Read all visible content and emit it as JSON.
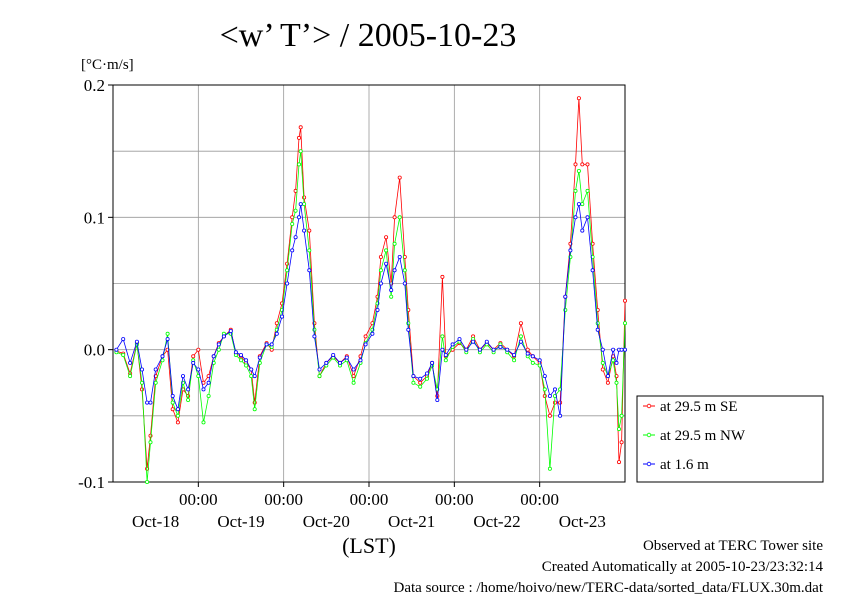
{
  "chart_data": {
    "type": "line",
    "title": "<w’ T’> / 2005-10-23",
    "yunit": "[°C·m/s]",
    "xlabel": "(LST)",
    "ylim": [
      -0.1,
      0.2
    ],
    "yticks": [
      {
        "value": 0.2,
        "label": "0.2"
      },
      {
        "value": 0.1,
        "label": "0.1"
      },
      {
        "value": 0.0,
        "label": "0.0"
      },
      {
        "value": -0.1,
        "label": "-0.1"
      }
    ],
    "xlim": [
      -1.0,
      5.0
    ],
    "xticks_time": [
      {
        "day": 0,
        "label": "00:00"
      },
      {
        "day": 1,
        "label": "00:00"
      },
      {
        "day": 2,
        "label": "00:00"
      },
      {
        "day": 3,
        "label": "00:00"
      },
      {
        "day": 4,
        "label": "00:00"
      }
    ],
    "xticks_date": [
      {
        "day": -0.5,
        "label": "Oct-18"
      },
      {
        "day": 0.5,
        "label": "Oct-19"
      },
      {
        "day": 1.5,
        "label": "Oct-20"
      },
      {
        "day": 2.5,
        "label": "Oct-21"
      },
      {
        "day": 3.5,
        "label": "Oct-22"
      },
      {
        "day": 4.5,
        "label": "Oct-23"
      }
    ],
    "grid": true,
    "legend_position": "right, outside plot",
    "series": [
      {
        "name": "at 29.5 m SE",
        "color": "#ff0000",
        "points": [
          [
            -0.96,
            -0.001
          ],
          [
            -0.88,
            -0.003
          ],
          [
            -0.8,
            -0.018
          ],
          [
            -0.72,
            0.005
          ],
          [
            -0.66,
            -0.03
          ],
          [
            -0.6,
            -0.09
          ],
          [
            -0.56,
            -0.065
          ],
          [
            -0.5,
            -0.02
          ],
          [
            -0.42,
            -0.005
          ],
          [
            -0.36,
            0.0
          ],
          [
            -0.3,
            -0.045
          ],
          [
            -0.24,
            -0.055
          ],
          [
            -0.18,
            -0.03
          ],
          [
            -0.12,
            -0.035
          ],
          [
            -0.06,
            -0.005
          ],
          [
            0.0,
            0.0
          ],
          [
            0.06,
            -0.025
          ],
          [
            0.12,
            -0.02
          ],
          [
            0.18,
            -0.005
          ],
          [
            0.24,
            0.005
          ],
          [
            0.3,
            0.01
          ],
          [
            0.38,
            0.015
          ],
          [
            0.44,
            -0.003
          ],
          [
            0.5,
            -0.005
          ],
          [
            0.56,
            -0.01
          ],
          [
            0.62,
            -0.015
          ],
          [
            0.66,
            -0.04
          ],
          [
            0.72,
            -0.005
          ],
          [
            0.8,
            0.005
          ],
          [
            0.86,
            0.0
          ],
          [
            0.92,
            0.02
          ],
          [
            0.98,
            0.035
          ],
          [
            1.04,
            0.065
          ],
          [
            1.1,
            0.1
          ],
          [
            1.14,
            0.12
          ],
          [
            1.18,
            0.16
          ],
          [
            1.2,
            0.168
          ],
          [
            1.24,
            0.115
          ],
          [
            1.3,
            0.09
          ],
          [
            1.36,
            0.02
          ],
          [
            1.42,
            -0.02
          ],
          [
            1.5,
            -0.01
          ],
          [
            1.58,
            -0.005
          ],
          [
            1.66,
            -0.01
          ],
          [
            1.74,
            -0.005
          ],
          [
            1.82,
            -0.02
          ],
          [
            1.9,
            -0.005
          ],
          [
            1.96,
            0.01
          ],
          [
            2.04,
            0.02
          ],
          [
            2.1,
            0.04
          ],
          [
            2.14,
            0.07
          ],
          [
            2.2,
            0.085
          ],
          [
            2.26,
            0.05
          ],
          [
            2.3,
            0.1
          ],
          [
            2.36,
            0.13
          ],
          [
            2.42,
            0.07
          ],
          [
            2.46,
            0.03
          ],
          [
            2.52,
            -0.02
          ],
          [
            2.6,
            -0.025
          ],
          [
            2.68,
            -0.02
          ],
          [
            2.74,
            -0.01
          ],
          [
            2.8,
            -0.035
          ],
          [
            2.86,
            0.055
          ],
          [
            2.9,
            -0.005
          ],
          [
            2.98,
            0.0
          ],
          [
            3.06,
            0.005
          ],
          [
            3.14,
            0.0
          ],
          [
            3.22,
            0.01
          ],
          [
            3.3,
            0.0
          ],
          [
            3.38,
            0.005
          ],
          [
            3.46,
            0.0
          ],
          [
            3.54,
            0.005
          ],
          [
            3.62,
            0.0
          ],
          [
            3.7,
            -0.005
          ],
          [
            3.78,
            0.02
          ],
          [
            3.86,
            0.0
          ],
          [
            3.92,
            -0.005
          ],
          [
            4.0,
            -0.01
          ],
          [
            4.06,
            -0.035
          ],
          [
            4.12,
            -0.05
          ],
          [
            4.18,
            -0.04
          ],
          [
            4.24,
            -0.04
          ],
          [
            4.3,
            0.04
          ],
          [
            4.36,
            0.08
          ],
          [
            4.42,
            0.14
          ],
          [
            4.46,
            0.19
          ],
          [
            4.5,
            0.14
          ],
          [
            4.56,
            0.14
          ],
          [
            4.62,
            0.08
          ],
          [
            4.68,
            0.03
          ],
          [
            4.74,
            -0.015
          ],
          [
            4.8,
            -0.025
          ],
          [
            4.86,
            -0.005
          ],
          [
            4.9,
            -0.02
          ],
          [
            4.93,
            -0.085
          ],
          [
            4.96,
            -0.07
          ],
          [
            5.0,
            0.037
          ]
        ]
      },
      {
        "name": "at 29.5 m NW",
        "color": "#00ff00",
        "points": [
          [
            -0.96,
            -0.002
          ],
          [
            -0.88,
            -0.004
          ],
          [
            -0.8,
            -0.02
          ],
          [
            -0.72,
            0.004
          ],
          [
            -0.66,
            -0.025
          ],
          [
            -0.6,
            -0.1
          ],
          [
            -0.56,
            -0.07
          ],
          [
            -0.5,
            -0.025
          ],
          [
            -0.42,
            -0.008
          ],
          [
            -0.36,
            0.012
          ],
          [
            -0.3,
            -0.04
          ],
          [
            -0.24,
            -0.05
          ],
          [
            -0.18,
            -0.025
          ],
          [
            -0.12,
            -0.038
          ],
          [
            -0.06,
            -0.008
          ],
          [
            0.0,
            -0.02
          ],
          [
            0.06,
            -0.055
          ],
          [
            0.12,
            -0.035
          ],
          [
            0.18,
            -0.01
          ],
          [
            0.24,
            0.0
          ],
          [
            0.3,
            0.012
          ],
          [
            0.38,
            0.012
          ],
          [
            0.44,
            -0.004
          ],
          [
            0.5,
            -0.008
          ],
          [
            0.56,
            -0.012
          ],
          [
            0.62,
            -0.02
          ],
          [
            0.66,
            -0.045
          ],
          [
            0.72,
            -0.01
          ],
          [
            0.8,
            0.004
          ],
          [
            0.86,
            0.002
          ],
          [
            0.92,
            0.015
          ],
          [
            0.98,
            0.03
          ],
          [
            1.04,
            0.06
          ],
          [
            1.1,
            0.095
          ],
          [
            1.14,
            0.105
          ],
          [
            1.18,
            0.14
          ],
          [
            1.2,
            0.15
          ],
          [
            1.24,
            0.11
          ],
          [
            1.3,
            0.075
          ],
          [
            1.36,
            0.015
          ],
          [
            1.42,
            -0.02
          ],
          [
            1.5,
            -0.012
          ],
          [
            1.58,
            -0.006
          ],
          [
            1.66,
            -0.012
          ],
          [
            1.74,
            -0.008
          ],
          [
            1.82,
            -0.025
          ],
          [
            1.9,
            -0.01
          ],
          [
            1.96,
            0.005
          ],
          [
            2.04,
            0.015
          ],
          [
            2.1,
            0.035
          ],
          [
            2.14,
            0.06
          ],
          [
            2.2,
            0.075
          ],
          [
            2.26,
            0.04
          ],
          [
            2.3,
            0.08
          ],
          [
            2.36,
            0.1
          ],
          [
            2.42,
            0.06
          ],
          [
            2.46,
            0.02
          ],
          [
            2.52,
            -0.025
          ],
          [
            2.6,
            -0.028
          ],
          [
            2.68,
            -0.022
          ],
          [
            2.74,
            -0.012
          ],
          [
            2.8,
            -0.03
          ],
          [
            2.86,
            0.01
          ],
          [
            2.9,
            -0.008
          ],
          [
            2.98,
            0.002
          ],
          [
            3.06,
            0.006
          ],
          [
            3.14,
            -0.002
          ],
          [
            3.22,
            0.008
          ],
          [
            3.3,
            -0.002
          ],
          [
            3.38,
            0.004
          ],
          [
            3.46,
            -0.002
          ],
          [
            3.54,
            0.004
          ],
          [
            3.62,
            -0.002
          ],
          [
            3.7,
            -0.008
          ],
          [
            3.78,
            0.01
          ],
          [
            3.86,
            -0.005
          ],
          [
            3.92,
            -0.01
          ],
          [
            4.0,
            -0.012
          ],
          [
            4.06,
            -0.03
          ],
          [
            4.12,
            -0.09
          ],
          [
            4.18,
            -0.035
          ],
          [
            4.24,
            -0.03
          ],
          [
            4.3,
            0.03
          ],
          [
            4.36,
            0.07
          ],
          [
            4.42,
            0.12
          ],
          [
            4.46,
            0.135
          ],
          [
            4.5,
            0.11
          ],
          [
            4.56,
            0.12
          ],
          [
            4.62,
            0.07
          ],
          [
            4.68,
            0.02
          ],
          [
            4.74,
            -0.01
          ],
          [
            4.8,
            -0.02
          ],
          [
            4.86,
            -0.008
          ],
          [
            4.9,
            -0.025
          ],
          [
            4.93,
            -0.06
          ],
          [
            4.96,
            -0.05
          ],
          [
            5.0,
            0.02
          ]
        ]
      },
      {
        "name": "at 1.6 m",
        "color": "#0000ff",
        "points": [
          [
            -0.96,
            0.0
          ],
          [
            -0.88,
            0.008
          ],
          [
            -0.8,
            -0.01
          ],
          [
            -0.72,
            0.006
          ],
          [
            -0.66,
            -0.015
          ],
          [
            -0.6,
            -0.04
          ],
          [
            -0.56,
            -0.04
          ],
          [
            -0.5,
            -0.015
          ],
          [
            -0.42,
            -0.005
          ],
          [
            -0.36,
            0.008
          ],
          [
            -0.3,
            -0.035
          ],
          [
            -0.24,
            -0.045
          ],
          [
            -0.18,
            -0.02
          ],
          [
            -0.12,
            -0.03
          ],
          [
            -0.06,
            -0.01
          ],
          [
            0.0,
            -0.015
          ],
          [
            0.06,
            -0.03
          ],
          [
            0.12,
            -0.025
          ],
          [
            0.18,
            -0.005
          ],
          [
            0.24,
            0.004
          ],
          [
            0.3,
            0.01
          ],
          [
            0.38,
            0.014
          ],
          [
            0.44,
            -0.002
          ],
          [
            0.5,
            -0.004
          ],
          [
            0.56,
            -0.008
          ],
          [
            0.62,
            -0.015
          ],
          [
            0.66,
            -0.02
          ],
          [
            0.72,
            -0.006
          ],
          [
            0.8,
            0.004
          ],
          [
            0.86,
            0.004
          ],
          [
            0.92,
            0.012
          ],
          [
            0.98,
            0.025
          ],
          [
            1.04,
            0.05
          ],
          [
            1.1,
            0.075
          ],
          [
            1.14,
            0.085
          ],
          [
            1.18,
            0.1
          ],
          [
            1.2,
            0.11
          ],
          [
            1.24,
            0.09
          ],
          [
            1.3,
            0.06
          ],
          [
            1.36,
            0.01
          ],
          [
            1.42,
            -0.015
          ],
          [
            1.5,
            -0.01
          ],
          [
            1.58,
            -0.004
          ],
          [
            1.66,
            -0.01
          ],
          [
            1.74,
            -0.006
          ],
          [
            1.82,
            -0.015
          ],
          [
            1.9,
            -0.008
          ],
          [
            1.96,
            0.004
          ],
          [
            2.04,
            0.012
          ],
          [
            2.1,
            0.03
          ],
          [
            2.14,
            0.05
          ],
          [
            2.2,
            0.065
          ],
          [
            2.26,
            0.045
          ],
          [
            2.3,
            0.06
          ],
          [
            2.36,
            0.07
          ],
          [
            2.42,
            0.05
          ],
          [
            2.46,
            0.015
          ],
          [
            2.52,
            -0.02
          ],
          [
            2.6,
            -0.022
          ],
          [
            2.68,
            -0.018
          ],
          [
            2.74,
            -0.01
          ],
          [
            2.8,
            -0.038
          ],
          [
            2.86,
            0.0
          ],
          [
            2.9,
            -0.004
          ],
          [
            2.98,
            0.004
          ],
          [
            3.06,
            0.008
          ],
          [
            3.14,
            0.0
          ],
          [
            3.22,
            0.006
          ],
          [
            3.3,
            0.0
          ],
          [
            3.38,
            0.006
          ],
          [
            3.46,
            0.0
          ],
          [
            3.54,
            0.002
          ],
          [
            3.62,
            0.0
          ],
          [
            3.7,
            -0.004
          ],
          [
            3.78,
            0.006
          ],
          [
            3.86,
            -0.003
          ],
          [
            3.92,
            -0.005
          ],
          [
            4.0,
            -0.008
          ],
          [
            4.06,
            -0.02
          ],
          [
            4.12,
            -0.035
          ],
          [
            4.18,
            -0.03
          ],
          [
            4.24,
            -0.05
          ],
          [
            4.3,
            0.04
          ],
          [
            4.36,
            0.075
          ],
          [
            4.42,
            0.1
          ],
          [
            4.46,
            0.11
          ],
          [
            4.5,
            0.09
          ],
          [
            4.56,
            0.1
          ],
          [
            4.62,
            0.06
          ],
          [
            4.68,
            0.015
          ],
          [
            4.74,
            0.0
          ],
          [
            4.8,
            -0.02
          ],
          [
            4.86,
            0.0
          ],
          [
            4.9,
            -0.01
          ],
          [
            4.93,
            0.0
          ],
          [
            4.96,
            0.0
          ],
          [
            5.0,
            0.0
          ]
        ]
      }
    ]
  },
  "footer": {
    "observed": "Observed at TERC Tower site",
    "created": "Created Automatically at 2005-10-23/23:32:14",
    "source": "Data source : /home/hoivo/new/TERC-data/sorted_data/FLUX.30m.dat"
  }
}
